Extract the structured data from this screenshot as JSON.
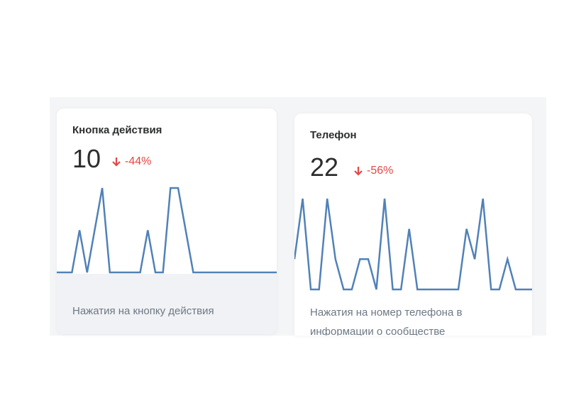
{
  "cards": [
    {
      "title": "Кнопка действия",
      "value": 10,
      "change": "-44%",
      "series": [
        0,
        0,
        0,
        1,
        0,
        1,
        2,
        0,
        0,
        0,
        0,
        0,
        1,
        0,
        0,
        2,
        2,
        1,
        0,
        0,
        0,
        0,
        0,
        0,
        0,
        0,
        0,
        0,
        0,
        0
      ],
      "description": "Нажатия на кнопку действия"
    },
    {
      "title": "Телефон",
      "value": 22,
      "change": "-56%",
      "series": [
        1,
        3,
        0,
        0,
        3,
        1,
        0,
        0,
        1,
        1,
        0,
        3,
        0,
        0,
        2,
        0,
        0,
        0,
        0,
        0,
        0,
        2,
        1,
        3,
        0,
        0,
        1,
        0,
        0,
        0
      ],
      "description": "Нажатия на номер телефона в информации о сообществе"
    }
  ]
}
